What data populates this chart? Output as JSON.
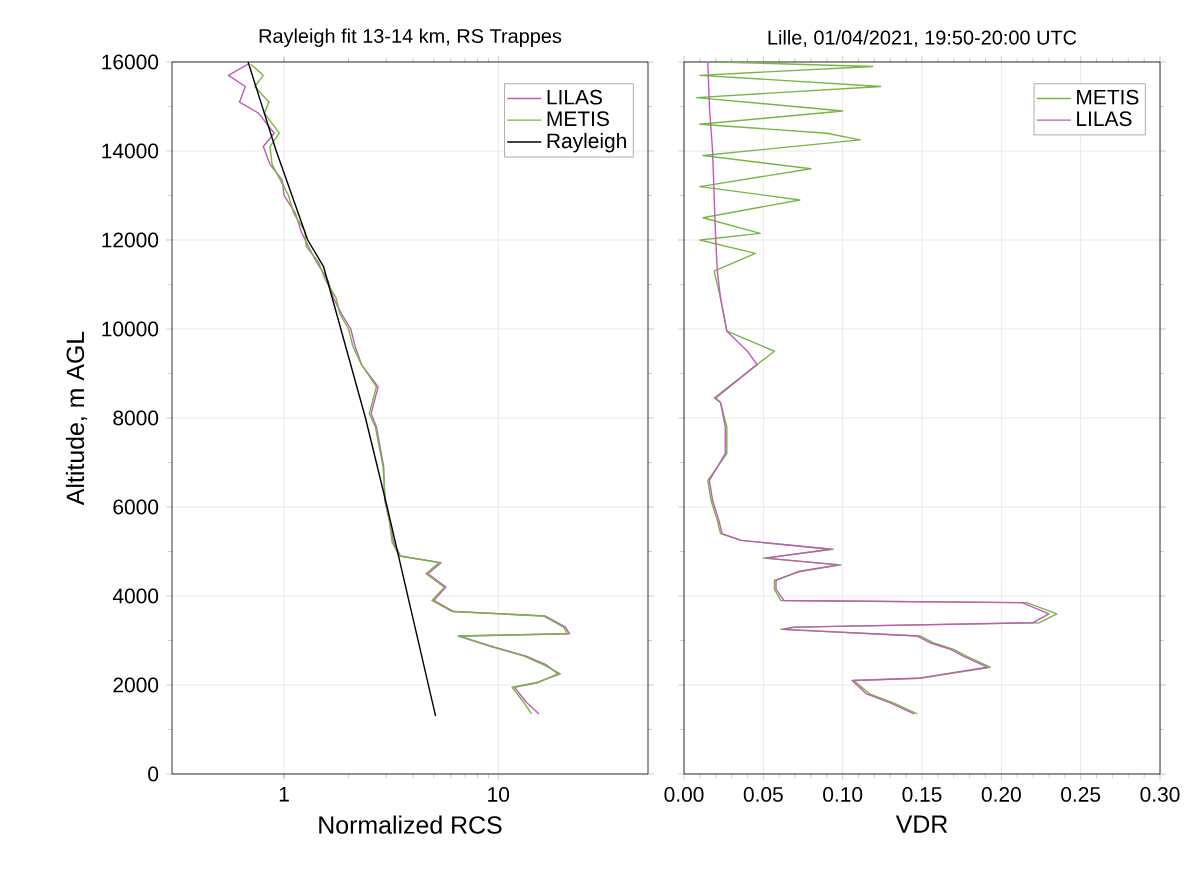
{
  "chart_data": [
    {
      "type": "line",
      "title": "Rayleigh fit 13-14 km, RS Trappes",
      "xlabel": "Normalized RCS",
      "ylabel": "Altitude, m AGL",
      "log": "x",
      "xlim": [
        0.3,
        50
      ],
      "xticks": [
        1,
        10
      ],
      "ylim": [
        0,
        16000
      ],
      "yticks": [
        0,
        2000,
        4000,
        6000,
        8000,
        10000,
        12000,
        14000,
        16000
      ],
      "grid": true,
      "legend": "top right",
      "series": [
        {
          "name": "LILAS",
          "color": "#c25bb5",
          "x": [
            15.5,
            13.6,
            11.9,
            15.2,
            19.0,
            16.8,
            13.5,
            9.6,
            6.6,
            21.5,
            20.6,
            16.6,
            6.2,
            5.0,
            5.7,
            4.7,
            5.4,
            3.5,
            3.25,
            3.1,
            2.95,
            2.92,
            2.7,
            2.55,
            2.75,
            2.3,
            2.15,
            2.05,
            1.85,
            1.7,
            1.6,
            1.42,
            1.3,
            1.2,
            1.13,
            1.0,
            0.98,
            0.86,
            0.8,
            0.9,
            0.76,
            0.62,
            0.66,
            0.55,
            0.68
          ],
          "values": [
            1350,
            1600,
            1950,
            2050,
            2250,
            2450,
            2650,
            2850,
            3100,
            3150,
            3300,
            3550,
            3650,
            3900,
            4200,
            4500,
            4750,
            4900,
            5200,
            5700,
            6150,
            6900,
            7800,
            8100,
            8700,
            9200,
            9600,
            10000,
            10350,
            10700,
            11100,
            11500,
            11850,
            12200,
            12600,
            13000,
            13350,
            13700,
            14100,
            14400,
            14850,
            15100,
            15450,
            15700,
            15950
          ]
        },
        {
          "name": "METIS",
          "color": "#74b843",
          "x": [
            14.3,
            13.2,
            11.6,
            15.0,
            19.5,
            16.3,
            13.2,
            9.4,
            6.5,
            21.0,
            20.2,
            16.3,
            6.1,
            4.9,
            5.6,
            4.6,
            5.3,
            3.45,
            3.2,
            3.1,
            2.97,
            2.9,
            2.67,
            2.5,
            2.7,
            2.3,
            2.1,
            2.0,
            1.82,
            1.75,
            1.56,
            1.45,
            1.27,
            1.25,
            1.11,
            1.05,
            0.96,
            0.88,
            0.86,
            0.95,
            0.81,
            0.85,
            0.73,
            0.8,
            0.7
          ],
          "values": [
            1350,
            1600,
            1950,
            2050,
            2250,
            2450,
            2650,
            2850,
            3100,
            3150,
            3300,
            3550,
            3650,
            3900,
            4200,
            4500,
            4750,
            4900,
            5200,
            5700,
            6150,
            6900,
            7800,
            8100,
            8700,
            9200,
            9600,
            10000,
            10350,
            10700,
            11100,
            11500,
            11850,
            12200,
            12600,
            13000,
            13350,
            13700,
            14100,
            14400,
            14850,
            15100,
            15450,
            15700,
            15950
          ]
        },
        {
          "name": "Rayleigh",
          "color": "#000000",
          "x": [
            5.1,
            3.03,
            2.4,
            1.53,
            1.29,
            0.92,
            0.68
          ],
          "values": [
            1300,
            6000,
            8000,
            11400,
            12000,
            14000,
            16000
          ]
        }
      ]
    },
    {
      "type": "line",
      "title": "Lille, 01/04/2021, 19:50-20:00 UTC",
      "xlabel": "VDR",
      "xlim": [
        0,
        0.3
      ],
      "xticks": [
        {
          "value": 0,
          "label": "0.00"
        },
        {
          "value": 0.05,
          "label": "0.05"
        },
        {
          "value": 0.1,
          "label": "0.10"
        },
        {
          "value": 0.15,
          "label": "0.15"
        },
        {
          "value": 0.2,
          "label": "0.20"
        },
        {
          "value": 0.25,
          "label": "0.25"
        },
        {
          "value": 0.3,
          "label": "0.30"
        }
      ],
      "ylim": [
        0,
        16000
      ],
      "yticks": [
        0,
        2000,
        4000,
        6000,
        8000,
        10000,
        12000,
        14000,
        16000
      ],
      "tick_labels": "x",
      "grid": true,
      "legend": "top right",
      "series": [
        {
          "name": "METIS",
          "color": "#74b843",
          "x": [
            0.147,
            0.132,
            0.117,
            0.107,
            0.149,
            0.193,
            0.178,
            0.17,
            0.157,
            0.149,
            0.061,
            0.069,
            0.224,
            0.235,
            0.216,
            0.061,
            0.057,
            0.057,
            0.073,
            0.099,
            0.05,
            0.094,
            0.036,
            0.023,
            0.021,
            0.017,
            0.015,
            0.027,
            0.027,
            0.023,
            0.019,
            0.046,
            0.057,
            0.027,
            0.023,
            0.019,
            0.045,
            0.01,
            0.048,
            0.012,
            0.073,
            0.01,
            0.08,
            0.012,
            0.111,
            0.09,
            0.01,
            0.1,
            0.008,
            0.124,
            0.01,
            0.119,
            0.02
          ],
          "values": [
            1350,
            1600,
            1800,
            2100,
            2150,
            2400,
            2650,
            2800,
            2950,
            3100,
            3250,
            3300,
            3400,
            3600,
            3850,
            3900,
            4150,
            4350,
            4550,
            4700,
            4850,
            5050,
            5250,
            5400,
            5700,
            6150,
            6600,
            7200,
            7800,
            8350,
            8450,
            9200,
            9500,
            9950,
            10700,
            11300,
            11700,
            12000,
            12150,
            12500,
            12900,
            13200,
            13600,
            13900,
            14250,
            14400,
            14600,
            14900,
            15200,
            15450,
            15700,
            15900,
            16000
          ]
        },
        {
          "name": "LILAS",
          "color": "#c25bb5",
          "x": [
            0.145,
            0.13,
            0.115,
            0.106,
            0.147,
            0.191,
            0.176,
            0.168,
            0.155,
            0.147,
            0.063,
            0.07,
            0.22,
            0.23,
            0.213,
            0.063,
            0.058,
            0.058,
            0.072,
            0.097,
            0.052,
            0.092,
            0.036,
            0.024,
            0.022,
            0.018,
            0.016,
            0.026,
            0.026,
            0.023,
            0.02,
            0.046,
            0.04,
            0.027,
            0.023,
            0.021,
            0.02,
            0.019,
            0.018,
            0.016,
            0.015
          ],
          "values": [
            1350,
            1600,
            1800,
            2100,
            2150,
            2400,
            2650,
            2800,
            2950,
            3100,
            3250,
            3300,
            3400,
            3600,
            3850,
            3900,
            4150,
            4350,
            4550,
            4700,
            4850,
            5050,
            5250,
            5400,
            5700,
            6150,
            6600,
            7200,
            7800,
            8350,
            8450,
            9200,
            9500,
            9950,
            10700,
            11300,
            12000,
            13000,
            14000,
            15000,
            16000
          ]
        }
      ]
    }
  ]
}
